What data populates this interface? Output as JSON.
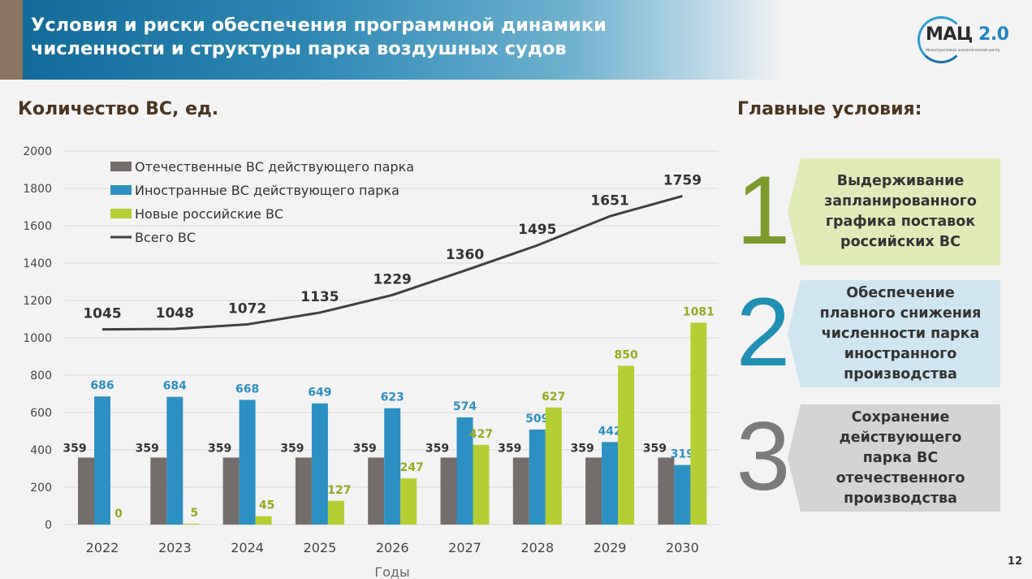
{
  "header": {
    "title_line1": "Условия и риски обеспечения программной динамики",
    "title_line2": "численности и структуры парка воздушных судов"
  },
  "logo": {
    "name": "МАЦ",
    "version": "2.0",
    "subtitle": "Межотраслевой аналитический центр"
  },
  "chart_heading": "Количество ВС, ед.",
  "conditions": {
    "title": "Главные условия:",
    "items": [
      {
        "number": "1",
        "text": "Выдерживание запланированного графика поставок российских ВС",
        "color": "#7f9a2c",
        "bg": "#e1ebb8"
      },
      {
        "number": "2",
        "text": "Обеспечение плавного снижения численности парка иностранного производства",
        "color": "#1f8fb3",
        "bg": "#cfe6f1"
      },
      {
        "number": "3",
        "text": "Сохранение действующего парка ВС отечественного производства",
        "color": "#7b7b7b",
        "bg": "#d5d4d4"
      }
    ]
  },
  "page_number": "12",
  "chart_data": {
    "type": "bar+line",
    "categories": [
      "2022",
      "2023",
      "2024",
      "2025",
      "2026",
      "2027",
      "2028",
      "2029",
      "2030"
    ],
    "xlabel": "Годы",
    "ylabel": "",
    "ylim": [
      0,
      2000
    ],
    "yticks": [
      0,
      200,
      400,
      600,
      800,
      1000,
      1200,
      1400,
      1600,
      1800,
      2000
    ],
    "grid": true,
    "legend": "top-left",
    "series": [
      {
        "name": "Отечественные ВС действующего парка",
        "type": "bar",
        "color": "#736d6b",
        "label_color": "#333333",
        "values": [
          359,
          359,
          359,
          359,
          359,
          359,
          359,
          359,
          359
        ]
      },
      {
        "name": "Иностранные ВС действующего парка",
        "type": "bar",
        "color": "#2c90c2",
        "label_color": "#2c90c2",
        "values": [
          686,
          684,
          668,
          649,
          623,
          574,
          509,
          442,
          319
        ]
      },
      {
        "name": "Новые российские ВС",
        "type": "bar",
        "color": "#b5cf32",
        "label_color": "#93ab1f",
        "values": [
          0,
          5,
          45,
          127,
          247,
          427,
          627,
          850,
          1081
        ]
      },
      {
        "name": "Всего ВС",
        "type": "line",
        "color": "#404040",
        "label_color": "#333333",
        "values": [
          1045,
          1048,
          1072,
          1135,
          1229,
          1360,
          1495,
          1651,
          1759
        ]
      }
    ]
  }
}
